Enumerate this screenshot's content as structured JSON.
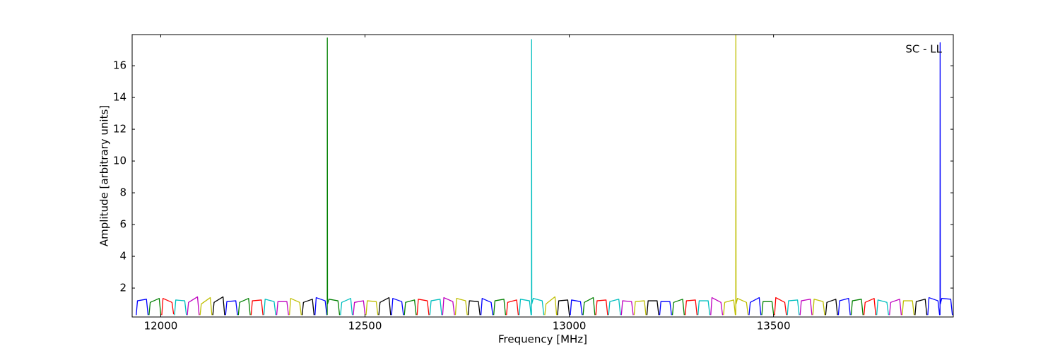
{
  "chart_data": {
    "type": "line",
    "annotation": "SC - LL",
    "x_label": "Frequency [MHz]",
    "y_label": "Amplitude [arbitrary units]",
    "xlim": [
      11930,
      13940
    ],
    "ylim": [
      0.18,
      17.96
    ],
    "xticks": [
      12000,
      12500,
      13000,
      13500
    ],
    "yticks": [
      2,
      4,
      6,
      8,
      10,
      12,
      14,
      16
    ],
    "grid": false,
    "series": [
      {
        "color": "#0000ff",
        "x": [
          11940,
          11943,
          11965,
          11969
        ],
        "values": [
          0.3,
          1.2,
          1.3,
          0.3
        ]
      },
      {
        "color": "#008000",
        "x": [
          11971.25,
          11974.25,
          11996.25,
          12000.25
        ],
        "values": [
          0.3,
          1.1,
          1.35,
          0.3
        ]
      },
      {
        "color": "#ff0000",
        "x": [
          12002.5,
          12005.5,
          12027.5,
          12031.5
        ],
        "values": [
          0.3,
          1.35,
          1.1,
          0.35
        ]
      },
      {
        "color": "#00bfbf",
        "x": [
          12033.75,
          12036.75,
          12058.75,
          12062.75
        ],
        "values": [
          0.3,
          1.25,
          1.2,
          0.3
        ]
      },
      {
        "color": "#bf00bf",
        "x": [
          12065,
          12068,
          12090,
          12094
        ],
        "values": [
          0.3,
          1.1,
          1.45,
          0.3
        ]
      },
      {
        "color": "#bfbf00",
        "x": [
          12096.25,
          12099.25,
          12121.25,
          12125.25
        ],
        "values": [
          0.3,
          1.0,
          1.4,
          0.3
        ]
      },
      {
        "color": "#000000",
        "x": [
          12127.5,
          12130.5,
          12152.5,
          12156.5
        ],
        "values": [
          0.3,
          1.1,
          1.45,
          0.3
        ]
      },
      {
        "color": "#0000ff",
        "x": [
          12158.75,
          12161.75,
          12183.75,
          12187.75
        ],
        "values": [
          0.3,
          1.15,
          1.2,
          0.3
        ]
      },
      {
        "color": "#008000",
        "x": [
          12190,
          12193,
          12215,
          12219
        ],
        "values": [
          0.3,
          1.1,
          1.35,
          0.3
        ]
      },
      {
        "color": "#ff0000",
        "x": [
          12221.25,
          12224.25,
          12246.25,
          12250.25
        ],
        "values": [
          0.3,
          1.2,
          1.25,
          0.3
        ]
      },
      {
        "color": "#00bfbf",
        "x": [
          12252.5,
          12255.5,
          12277.5,
          12281.5
        ],
        "values": [
          0.3,
          1.3,
          1.15,
          0.3
        ]
      },
      {
        "color": "#bf00bf",
        "x": [
          12283.75,
          12286.75,
          12308.75,
          12312.75
        ],
        "values": [
          0.3,
          1.15,
          1.15,
          0.3
        ]
      },
      {
        "color": "#bfbf00",
        "x": [
          12315,
          12318,
          12340,
          12344
        ],
        "values": [
          0.3,
          1.35,
          1.1,
          0.3
        ]
      },
      {
        "color": "#000000",
        "x": [
          12346.25,
          12349.25,
          12371.25,
          12375.25
        ],
        "values": [
          0.3,
          1.1,
          1.3,
          0.3
        ]
      },
      {
        "color": "#0000ff",
        "x": [
          12377.5,
          12380.5,
          12402.5,
          12406.5
        ],
        "values": [
          0.3,
          1.4,
          1.2,
          0.3
        ]
      },
      {
        "color": "#008000",
        "x": [
          12407.5,
          12407.75,
          12408.25,
          12411.75,
          12433.75,
          12437.75
        ],
        "values": [
          0.3,
          17.75,
          1.0,
          1.3,
          1.2,
          0.3
        ]
      },
      {
        "color": "#00bfbf",
        "x": [
          12440,
          12443,
          12465,
          12469
        ],
        "values": [
          0.3,
          1.1,
          1.35,
          0.3
        ]
      },
      {
        "color": "#bf00bf",
        "x": [
          12471.25,
          12474.25,
          12496.25,
          12500.25
        ],
        "values": [
          0.3,
          1.1,
          1.2,
          0.3
        ]
      },
      {
        "color": "#bfbf00",
        "x": [
          12502.5,
          12505.5,
          12527.5,
          12531.5
        ],
        "values": [
          0.3,
          1.2,
          1.15,
          0.3
        ]
      },
      {
        "color": "#000000",
        "x": [
          12533.75,
          12536.75,
          12558.75,
          12562.75
        ],
        "values": [
          0.3,
          1.1,
          1.4,
          0.3
        ]
      },
      {
        "color": "#0000ff",
        "x": [
          12565,
          12568,
          12590,
          12594
        ],
        "values": [
          0.3,
          1.35,
          1.15,
          0.3
        ]
      },
      {
        "color": "#008000",
        "x": [
          12596.25,
          12599.25,
          12621.25,
          12625.25
        ],
        "values": [
          0.3,
          1.1,
          1.25,
          0.3
        ]
      },
      {
        "color": "#ff0000",
        "x": [
          12627.5,
          12630.5,
          12652.5,
          12656.5
        ],
        "values": [
          0.3,
          1.3,
          1.2,
          0.3
        ]
      },
      {
        "color": "#00bfbf",
        "x": [
          12658.75,
          12661.75,
          12683.75,
          12687.75
        ],
        "values": [
          0.3,
          1.2,
          1.3,
          0.3
        ]
      },
      {
        "color": "#bf00bf",
        "x": [
          12690,
          12693,
          12715,
          12719
        ],
        "values": [
          0.3,
          1.4,
          1.15,
          0.3
        ]
      },
      {
        "color": "#bfbf00",
        "x": [
          12721.25,
          12724.25,
          12746.25,
          12750.25
        ],
        "values": [
          0.3,
          1.35,
          1.2,
          0.3
        ]
      },
      {
        "color": "#000000",
        "x": [
          12752.5,
          12755.5,
          12777.5,
          12781.5
        ],
        "values": [
          0.3,
          1.2,
          1.15,
          0.3
        ]
      },
      {
        "color": "#0000ff",
        "x": [
          12783.75,
          12786.75,
          12808.75,
          12812.75
        ],
        "values": [
          0.3,
          1.35,
          1.1,
          0.3
        ]
      },
      {
        "color": "#008000",
        "x": [
          12815,
          12818,
          12840,
          12844
        ],
        "values": [
          0.3,
          1.2,
          1.3,
          0.3
        ]
      },
      {
        "color": "#ff0000",
        "x": [
          12846.25,
          12849.25,
          12871.25,
          12875.25
        ],
        "values": [
          0.3,
          1.1,
          1.25,
          0.3
        ]
      },
      {
        "color": "#00bfbf",
        "x": [
          12877.5,
          12880.5,
          12902.5,
          12906.5
        ],
        "values": [
          0.3,
          1.3,
          1.2,
          0.3
        ]
      },
      {
        "color": "#00bfbf",
        "x": [
          12907.5,
          12907.75,
          12908.25,
          12911.75,
          12933.75,
          12937.75
        ],
        "values": [
          0.3,
          17.65,
          1.0,
          1.35,
          1.2,
          0.3
        ]
      },
      {
        "color": "#bfbf00",
        "x": [
          12940,
          12943,
          12965,
          12969
        ],
        "values": [
          0.3,
          1.0,
          1.45,
          0.3
        ]
      },
      {
        "color": "#000000",
        "x": [
          12971.25,
          12974.25,
          12996.25,
          13000.25
        ],
        "values": [
          0.3,
          1.2,
          1.25,
          0.3
        ]
      },
      {
        "color": "#0000ff",
        "x": [
          13002.5,
          13005.5,
          13027.5,
          13031.5
        ],
        "values": [
          0.3,
          1.25,
          1.15,
          0.3
        ]
      },
      {
        "color": "#008000",
        "x": [
          13033.75,
          13036.75,
          13058.75,
          13062.75
        ],
        "values": [
          0.3,
          1.1,
          1.4,
          0.3
        ]
      },
      {
        "color": "#ff0000",
        "x": [
          13065,
          13068,
          13090,
          13094
        ],
        "values": [
          0.3,
          1.2,
          1.25,
          0.3
        ]
      },
      {
        "color": "#00bfbf",
        "x": [
          13096.25,
          13099.25,
          13121.25,
          13125.25
        ],
        "values": [
          0.3,
          1.15,
          1.3,
          0.3
        ]
      },
      {
        "color": "#bf00bf",
        "x": [
          13127.5,
          13130.5,
          13152.5,
          13156.5
        ],
        "values": [
          0.3,
          1.2,
          1.15,
          0.3
        ]
      },
      {
        "color": "#bfbf00",
        "x": [
          13158.75,
          13161.75,
          13183.75,
          13187.75
        ],
        "values": [
          0.3,
          1.15,
          1.2,
          0.3
        ]
      },
      {
        "color": "#000000",
        "x": [
          13190,
          13193,
          13215,
          13219
        ],
        "values": [
          0.3,
          1.2,
          1.2,
          0.3
        ]
      },
      {
        "color": "#0000ff",
        "x": [
          13221.25,
          13224.25,
          13246.25,
          13250.25
        ],
        "values": [
          0.3,
          1.15,
          1.15,
          0.3
        ]
      },
      {
        "color": "#008000",
        "x": [
          13252.5,
          13255.5,
          13277.5,
          13281.5
        ],
        "values": [
          0.3,
          1.1,
          1.3,
          0.3
        ]
      },
      {
        "color": "#ff0000",
        "x": [
          13283.75,
          13286.75,
          13308.75,
          13312.75
        ],
        "values": [
          0.3,
          1.2,
          1.25,
          0.3
        ]
      },
      {
        "color": "#00bfbf",
        "x": [
          13315,
          13318,
          13340,
          13344
        ],
        "values": [
          0.3,
          1.2,
          1.2,
          0.3
        ]
      },
      {
        "color": "#bf00bf",
        "x": [
          13346.25,
          13349.25,
          13371.25,
          13375.25
        ],
        "values": [
          0.3,
          1.4,
          1.1,
          0.3
        ]
      },
      {
        "color": "#bfbf00",
        "x": [
          13377.5,
          13380.5,
          13402.5,
          13406.5
        ],
        "values": [
          0.3,
          1.1,
          1.25,
          0.3
        ]
      },
      {
        "color": "#bfbf00",
        "x": [
          13407.5,
          13407.75,
          13408.25,
          13411.75,
          13433.75,
          13437.75
        ],
        "values": [
          0.3,
          17.95,
          1.0,
          1.35,
          1.1,
          0.3
        ]
      },
      {
        "color": "#0000ff",
        "x": [
          13440,
          13443,
          13465,
          13469
        ],
        "values": [
          0.3,
          1.1,
          1.4,
          0.3
        ]
      },
      {
        "color": "#008000",
        "x": [
          13471.25,
          13474.25,
          13496.25,
          13500.25
        ],
        "values": [
          0.3,
          1.15,
          1.15,
          0.3
        ]
      },
      {
        "color": "#ff0000",
        "x": [
          13502.5,
          13505.5,
          13527.5,
          13531.5
        ],
        "values": [
          0.3,
          1.4,
          1.1,
          0.3
        ]
      },
      {
        "color": "#00bfbf",
        "x": [
          13533.75,
          13536.75,
          13558.75,
          13562.75
        ],
        "values": [
          0.3,
          1.2,
          1.25,
          0.3
        ]
      },
      {
        "color": "#bf00bf",
        "x": [
          13565,
          13568,
          13590,
          13594
        ],
        "values": [
          0.3,
          1.2,
          1.3,
          0.3
        ]
      },
      {
        "color": "#bfbf00",
        "x": [
          13596.25,
          13599.25,
          13621.25,
          13625.25
        ],
        "values": [
          0.3,
          1.3,
          1.15,
          0.3
        ]
      },
      {
        "color": "#000000",
        "x": [
          13627.5,
          13630.5,
          13652.5,
          13656.5
        ],
        "values": [
          0.3,
          1.1,
          1.3,
          0.3
        ]
      },
      {
        "color": "#0000ff",
        "x": [
          13658.75,
          13661.75,
          13683.75,
          13687.75
        ],
        "values": [
          0.3,
          1.2,
          1.35,
          0.3
        ]
      },
      {
        "color": "#008000",
        "x": [
          13690,
          13693,
          13715,
          13719
        ],
        "values": [
          0.3,
          1.2,
          1.3,
          0.3
        ]
      },
      {
        "color": "#ff0000",
        "x": [
          13721.25,
          13724.25,
          13746.25,
          13750.25
        ],
        "values": [
          0.3,
          1.1,
          1.35,
          0.3
        ]
      },
      {
        "color": "#00bfbf",
        "x": [
          13752.5,
          13755.5,
          13777.5,
          13781.5
        ],
        "values": [
          0.3,
          1.25,
          1.1,
          0.3
        ]
      },
      {
        "color": "#bf00bf",
        "x": [
          13783.75,
          13786.75,
          13808.75,
          13812.75
        ],
        "values": [
          0.3,
          1.1,
          1.3,
          0.3
        ]
      },
      {
        "color": "#bfbf00",
        "x": [
          13815,
          13818,
          13840,
          13844
        ],
        "values": [
          0.3,
          1.2,
          1.2,
          0.3
        ]
      },
      {
        "color": "#000000",
        "x": [
          13846.25,
          13849.25,
          13871.25,
          13875.25
        ],
        "values": [
          0.3,
          1.15,
          1.3,
          0.3
        ]
      },
      {
        "color": "#0000ff",
        "x": [
          13877.5,
          13880.5,
          13902.5,
          13906.5
        ],
        "values": [
          0.3,
          1.4,
          1.2,
          0.3
        ]
      },
      {
        "color": "#0000ff",
        "x": [
          13907.5,
          13907.75,
          13908.25,
          13911.75,
          13933.75,
          13937.75
        ],
        "values": [
          0.3,
          17.45,
          1.0,
          1.35,
          1.3,
          0.3
        ]
      }
    ]
  }
}
